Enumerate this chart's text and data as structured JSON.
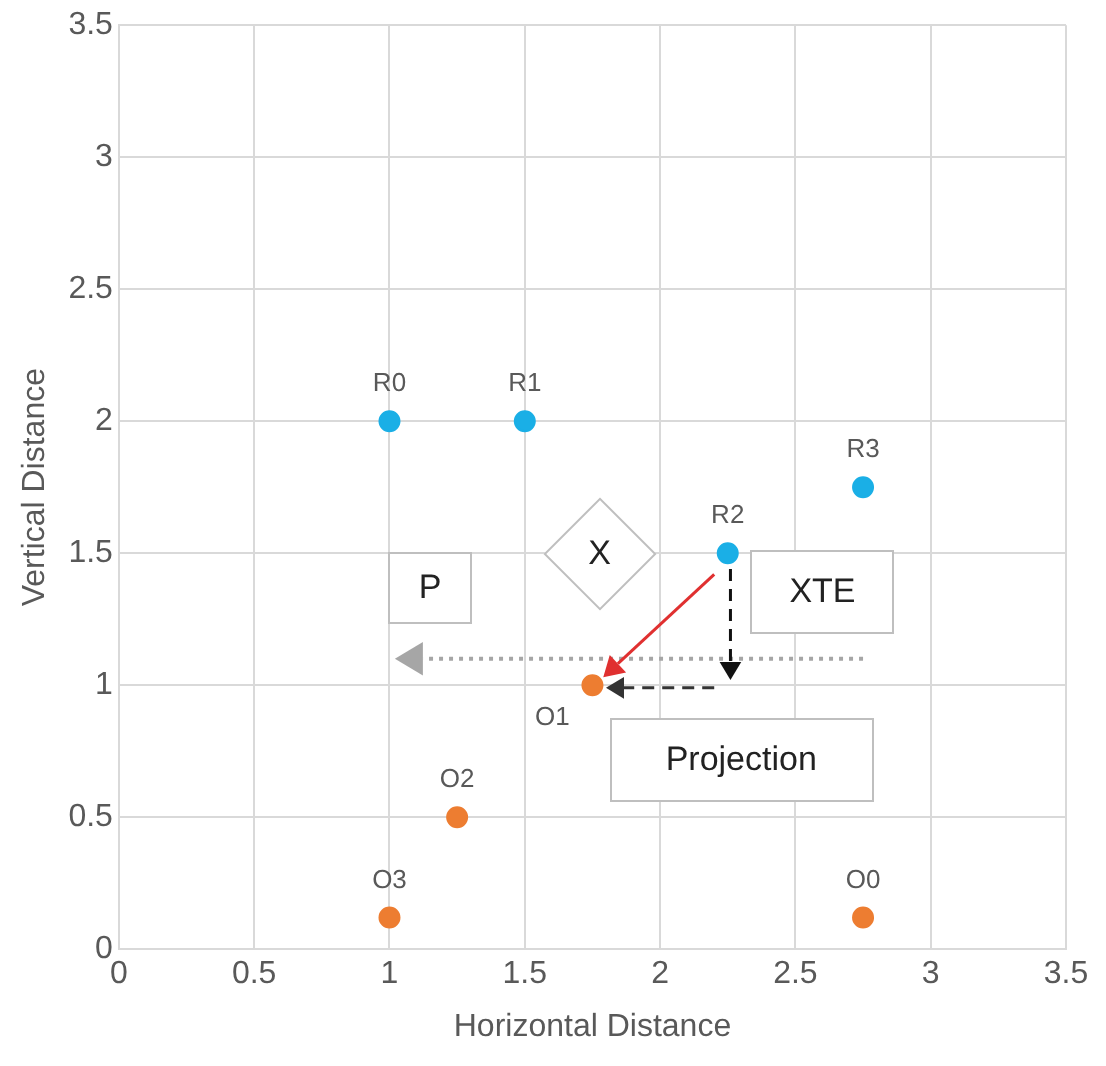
{
  "chart_data": {
    "type": "scatter",
    "xlabel": "Horizontal Distance",
    "ylabel": "Vertical Distance",
    "series": [
      {
        "color": "#1aafe6",
        "x": [
          1,
          1.5,
          2.25,
          2.75
        ],
        "values": [
          2,
          2,
          1.5,
          1.75
        ]
      },
      {
        "color": "#ed7d31",
        "x": [
          2.75,
          1.75,
          1.25,
          1
        ],
        "values": [
          0.12,
          1,
          0.5,
          0.12
        ]
      }
    ],
    "xlim": [
      0,
      3.5
    ],
    "xticks": [
      0,
      0.5,
      1,
      1.5,
      2,
      2.5,
      3,
      3.5
    ],
    "ylim": [
      0,
      3.5
    ],
    "yticks": [
      0,
      0.5,
      1,
      1.5,
      2,
      2.5,
      3,
      3.5
    ],
    "grid": true,
    "legend": false,
    "marker": "circle",
    "annotations": [
      {
        "text": "R0",
        "x": 1,
        "y": 2
      },
      {
        "text": "R1",
        "x": 1.5,
        "y": 2
      },
      {
        "text": "R2",
        "x": 2.25,
        "y": 1.5
      },
      {
        "text": "R3",
        "x": 2.75,
        "y": 1.75
      },
      {
        "text": "O0",
        "x": 2.75,
        "y": 0.12
      },
      {
        "text": "O1",
        "x": 1.75,
        "y": 1
      },
      {
        "text": "O2",
        "x": 1.25,
        "y": 0.5
      },
      {
        "text": "O3",
        "x": 1,
        "y": 0.12
      },
      "P",
      "X",
      "XTE",
      "Projection"
    ]
  }
}
